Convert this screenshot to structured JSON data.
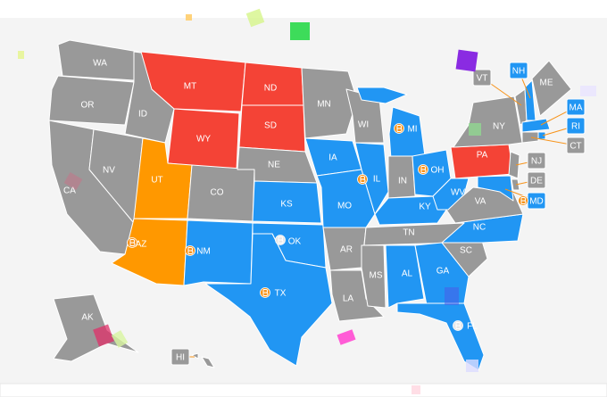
{
  "states": [
    {
      "label": "WA",
      "color": "#999999"
    },
    {
      "label": "OR",
      "color": "#999999"
    },
    {
      "label": "CA",
      "color": "#999999"
    },
    {
      "label": "NV",
      "color": "#999999"
    },
    {
      "label": "ID",
      "color": "#999999"
    },
    {
      "label": "MT",
      "color": "#f44336"
    },
    {
      "label": "WY",
      "color": "#f44336"
    },
    {
      "label": "UT",
      "color": "#ff9800"
    },
    {
      "label": "AZ",
      "color": "#ff9800",
      "marker": "#f7931a"
    },
    {
      "label": "CO",
      "color": "#999999"
    },
    {
      "label": "NM",
      "color": "#2196f3",
      "marker": "#f7931a"
    },
    {
      "label": "ND",
      "color": "#f44336"
    },
    {
      "label": "SD",
      "color": "#f44336"
    },
    {
      "label": "NE",
      "color": "#999999"
    },
    {
      "label": "KS",
      "color": "#2196f3"
    },
    {
      "label": "OK",
      "color": "#2196f3",
      "marker": "#e6e6e6"
    },
    {
      "label": "TX",
      "color": "#2196f3",
      "marker": "#f7931a"
    },
    {
      "label": "MN",
      "color": "#999999"
    },
    {
      "label": "IA",
      "color": "#2196f3"
    },
    {
      "label": "MO",
      "color": "#2196f3"
    },
    {
      "label": "AR",
      "color": "#999999"
    },
    {
      "label": "LA",
      "color": "#999999"
    },
    {
      "label": "WI",
      "color": "#999999"
    },
    {
      "label": "IL",
      "color": "#2196f3",
      "marker": "#f7931a"
    },
    {
      "label": "MI",
      "color": "#2196f3",
      "marker": "#f7931a"
    },
    {
      "label": "IN",
      "color": "#999999"
    },
    {
      "label": "OH",
      "color": "#2196f3",
      "marker": "#f7931a"
    },
    {
      "label": "KY",
      "color": "#2196f3"
    },
    {
      "label": "TN",
      "color": "#999999"
    },
    {
      "label": "MS",
      "color": "#999999"
    },
    {
      "label": "AL",
      "color": "#2196f3"
    },
    {
      "label": "GA",
      "color": "#2196f3"
    },
    {
      "label": "FL",
      "color": "#2196f3",
      "marker": "#e6e6e6"
    },
    {
      "label": "SC",
      "color": "#999999"
    },
    {
      "label": "NC",
      "color": "#2196f3"
    },
    {
      "label": "VA",
      "color": "#999999"
    },
    {
      "label": "WV",
      "color": "#2196f3"
    },
    {
      "label": "PA",
      "color": "#f44336"
    },
    {
      "label": "NY",
      "color": "#999999"
    },
    {
      "label": "VT",
      "color": "#999999"
    },
    {
      "label": "NH",
      "color": "#2196f3"
    },
    {
      "label": "ME",
      "color": "#999999"
    },
    {
      "label": "MA",
      "color": "#2196f3"
    },
    {
      "label": "RI",
      "color": "#2196f3"
    },
    {
      "label": "CT",
      "color": "#999999"
    },
    {
      "label": "NJ",
      "color": "#999999"
    },
    {
      "label": "DE",
      "color": "#999999"
    },
    {
      "label": "MD",
      "color": "#2196f3",
      "marker": "#f7931a"
    },
    {
      "label": "AK",
      "color": "#999999"
    },
    {
      "label": "HI",
      "color": "#999999"
    }
  ]
}
